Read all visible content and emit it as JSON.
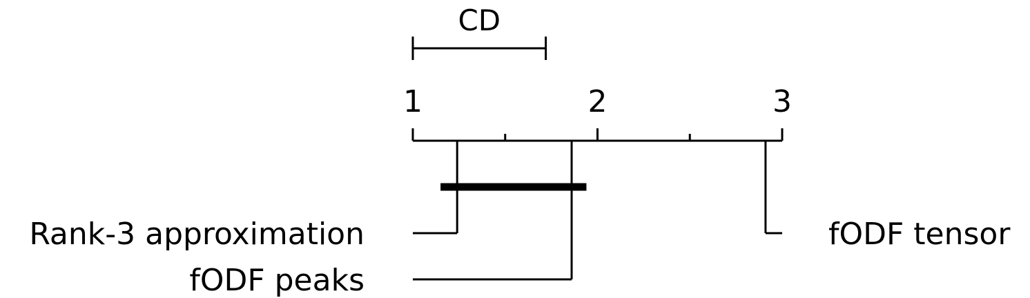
{
  "chart_data": {
    "type": "critical-difference-diagram",
    "axis": {
      "min": 1,
      "max": 3,
      "major_ticks": [
        1,
        2,
        3
      ],
      "minor_ticks": [
        1.5,
        2.5
      ],
      "tick_labels": [
        "1",
        "2",
        "3"
      ]
    },
    "cd": {
      "label": "CD",
      "value": 0.72
    },
    "methods": [
      {
        "name": "Rank-3 approximation",
        "rank": 1.24,
        "side": "left"
      },
      {
        "name": "fODF peaks",
        "rank": 1.86,
        "side": "left"
      },
      {
        "name": "fODF tensor",
        "rank": 2.91,
        "side": "right"
      }
    ],
    "cliques": [
      {
        "from": 1.15,
        "to": 1.94
      }
    ],
    "colors": {
      "line": "#000000",
      "background": "#ffffff"
    }
  }
}
